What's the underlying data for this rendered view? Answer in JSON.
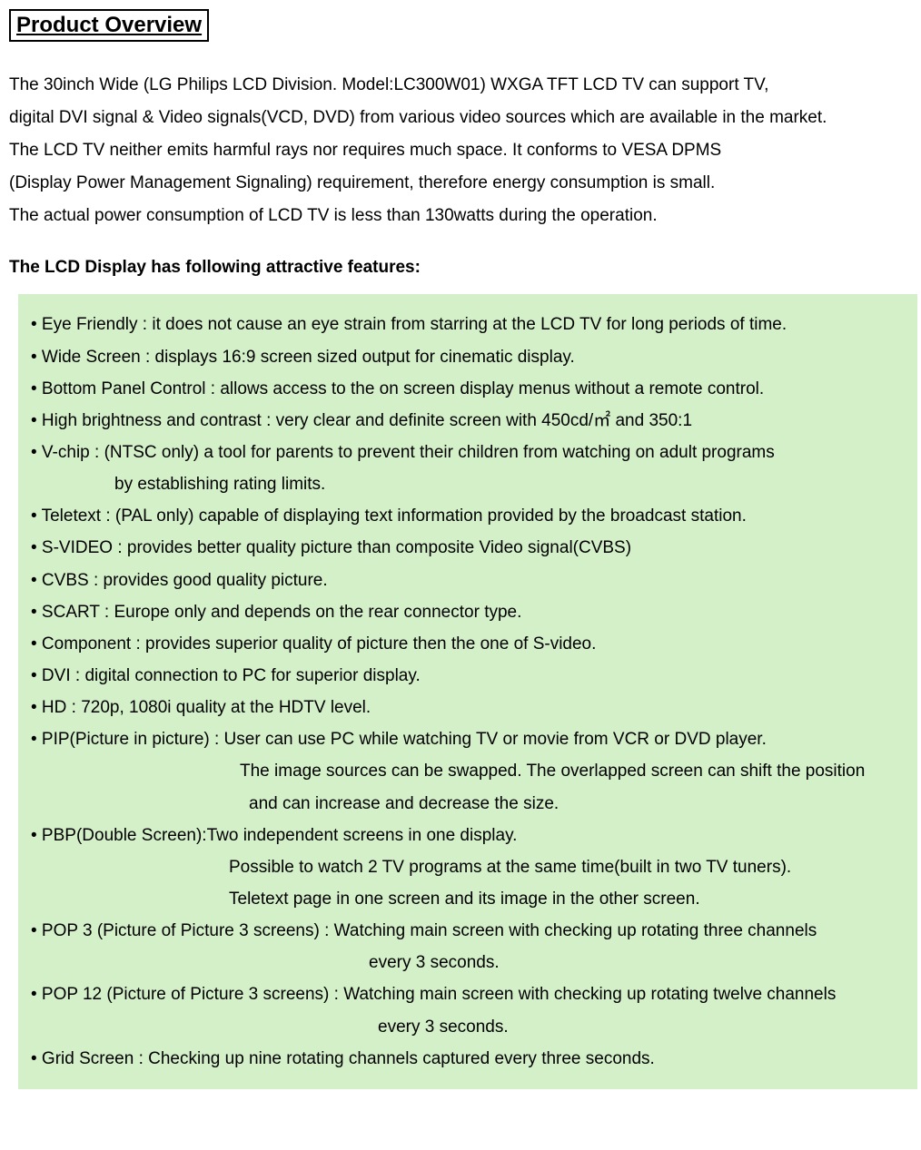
{
  "title": "Product Overview",
  "intro_lines": [
    "The 30inch Wide (LG Philips LCD Division. Model:LC300W01) WXGA TFT LCD TV can support TV,",
    "digital DVI signal & Video signals(VCD, DVD) from various video sources which are available in the market.",
    "The LCD TV neither emits harmful rays nor requires much space. It conforms to VESA DPMS",
    "(Display Power Management Signaling) requirement, therefore energy consumption is small.",
    "The actual power consumption of LCD TV is less than 130watts during the operation."
  ],
  "subhead": "The LCD Display has following attractive features:",
  "features": [
    {
      "text": "• Eye Friendly : it does not cause an eye strain from starring at the LCD TV for long periods of time.",
      "class": ""
    },
    {
      "text": "• Wide Screen : displays 16:9 screen sized output for cinematic display.",
      "class": ""
    },
    {
      "text": "• Bottom Panel Control : allows access to the on screen display menus without a remote control.",
      "class": ""
    },
    {
      "text": "• High brightness and contrast : very clear and definite screen with 450cd/㎡  and 350:1",
      "class": ""
    },
    {
      "text": "• V-chip : (NTSC only) a tool for parents to prevent their children from watching on adult programs",
      "class": ""
    },
    {
      "text": "by establishing rating limits.",
      "class": "indent-1"
    },
    {
      "text": "• Teletext : (PAL only) capable of displaying text information provided by the broadcast station.",
      "class": ""
    },
    {
      "text": "• S-VIDEO : provides better quality picture than composite Video signal(CVBS)",
      "class": ""
    },
    {
      "text": "• CVBS : provides good quality picture.",
      "class": ""
    },
    {
      "text": "• SCART : Europe only and depends on the rear connector type.",
      "class": ""
    },
    {
      "text": "• Component : provides superior quality of picture then the one of S-video.",
      "class": ""
    },
    {
      "text": "• DVI : digital connection to PC for superior display.",
      "class": ""
    },
    {
      "text": "• HD :   720p, 1080i quality at the HDTV level.",
      "class": ""
    },
    {
      "text": "• PIP(Picture in picture) : User can use PC while watching TV or movie from VCR or DVD player.",
      "class": ""
    },
    {
      "text": "The image sources can be swapped. The overlapped screen can shift the position",
      "class": "indent-2"
    },
    {
      "text": "and can increase and decrease the size.",
      "class": "indent-2b"
    },
    {
      "text": "• PBP(Double Screen):Two independent screens in one display.",
      "class": ""
    },
    {
      "text": "Possible to watch 2 TV programs at the same time(built in two TV tuners).",
      "class": "indent-3"
    },
    {
      "text": "Teletext page in one screen and its image in the other screen.",
      "class": "indent-3"
    },
    {
      "text": "• POP 3 (Picture of Picture 3 screens) : Watching main screen with checking up rotating three channels",
      "class": ""
    },
    {
      "text": "every 3 seconds.",
      "class": "indent-4"
    },
    {
      "text": "• POP 12 (Picture of Picture 3 screens) : Watching main screen with checking up rotating twelve channels",
      "class": ""
    },
    {
      "text": "every 3 seconds.",
      "class": "indent-5"
    },
    {
      "text": "• Grid Screen : Checking up nine rotating channels captured every three seconds.",
      "class": ""
    }
  ],
  "colors": {
    "background": "#ffffff",
    "text": "#000000",
    "feature_box_bg": "#d4f0c8",
    "title_border": "#000000"
  },
  "typography": {
    "title_fontsize": 24,
    "body_fontsize": 19,
    "line_height": 1.9
  }
}
